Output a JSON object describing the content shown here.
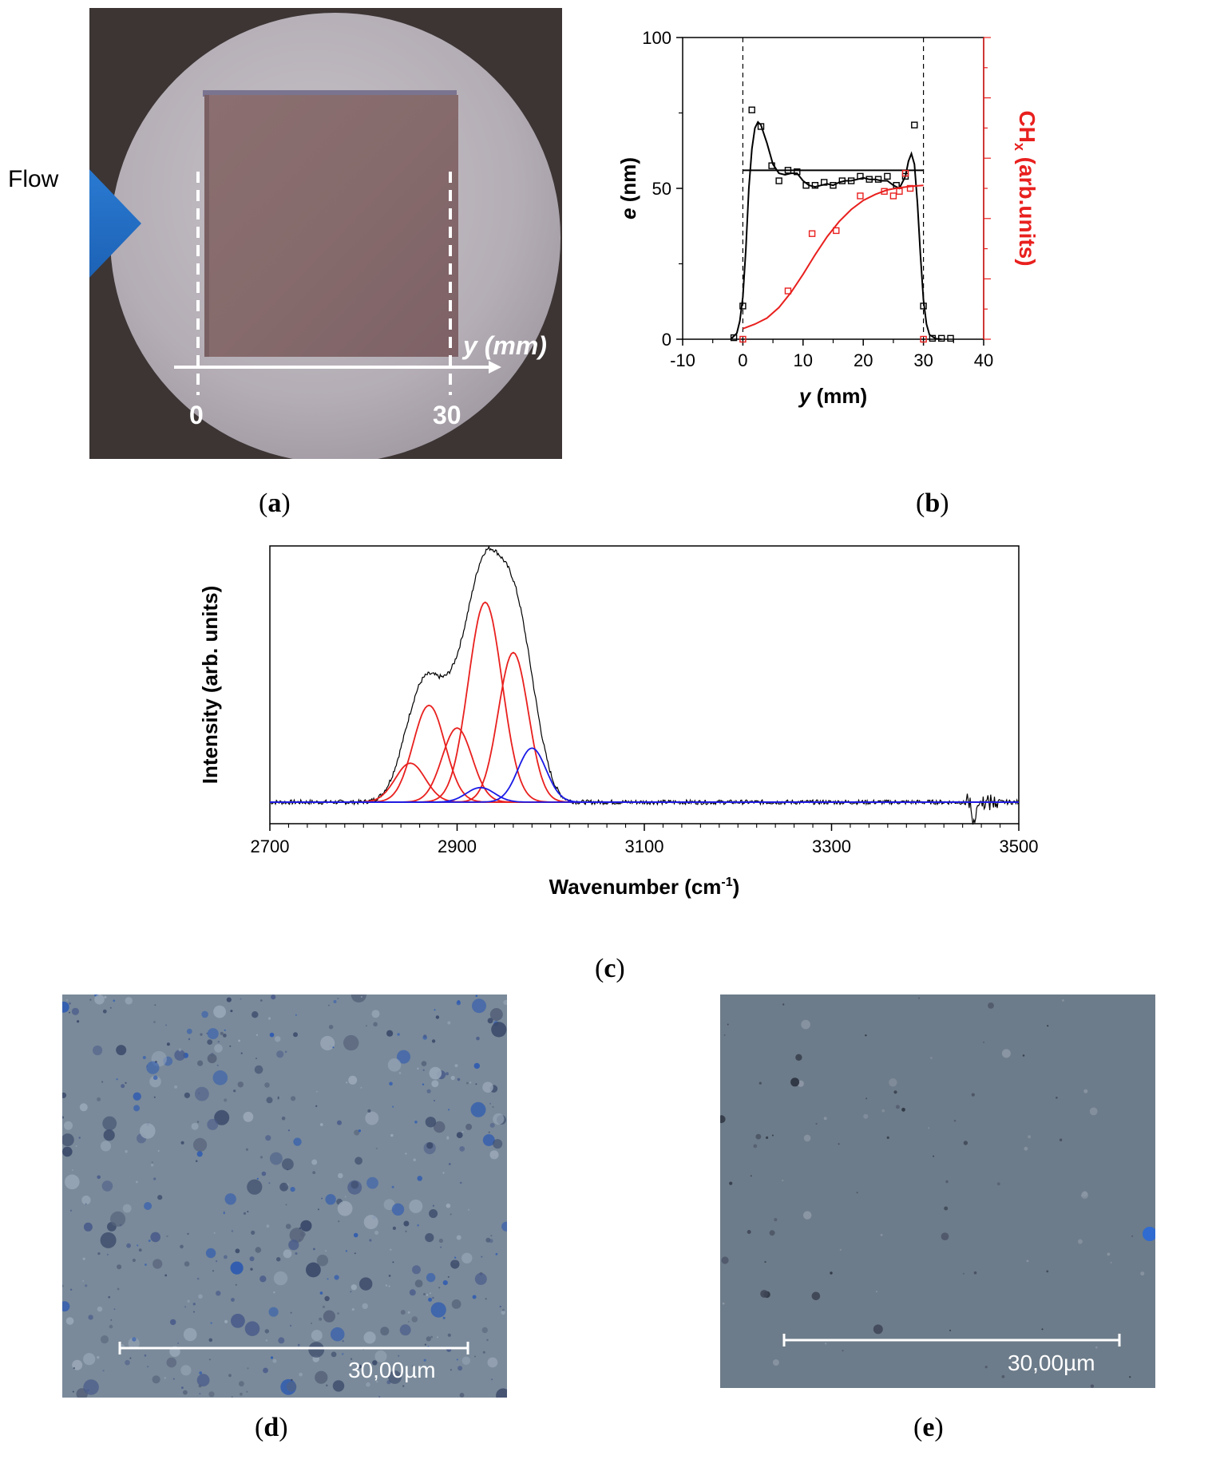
{
  "panels": {
    "a": {
      "caption_open": "(",
      "caption_letter": "a",
      "caption_close": ")",
      "flow_label": "Flow",
      "axis_label": "y (mm)",
      "tick_start": "0",
      "tick_end": "30"
    },
    "b": {
      "caption_open": "(",
      "caption_letter": "b",
      "caption_close": ")",
      "colors": {
        "thickness": "#000000",
        "chx": "#e8201e"
      }
    },
    "c": {
      "caption_open": "(",
      "caption_letter": "c",
      "caption_close": ")",
      "colors": {
        "measured": "#000000",
        "fit_red": "#e8201e",
        "fit_blue": "#1a1ae6"
      }
    },
    "d": {
      "caption_open": "(",
      "caption_letter": "d",
      "caption_close": ")",
      "scale_label": "30,00µm"
    },
    "e": {
      "caption_open": "(",
      "caption_letter": "e",
      "caption_close": ")",
      "scale_label": "30,00µm"
    }
  },
  "chart_data": [
    {
      "panel": "b",
      "type": "scatter",
      "xlabel": "y (mm)",
      "ylabel": "e (nm)",
      "ylabel_right": "CHx (arb.units)",
      "xlim": [
        -10,
        40
      ],
      "ylim": [
        0,
        100
      ],
      "x_ticks": [
        "-10",
        "0",
        "10",
        "20",
        "30",
        "40"
      ],
      "y_ticks": [
        "0",
        "50",
        "100"
      ],
      "grid": false,
      "vertical_dashed_lines": [
        0,
        30
      ],
      "reference_line": {
        "y": 56,
        "x": [
          0,
          30
        ]
      },
      "series": [
        {
          "marker": "square-open",
          "color": "#000000",
          "points": [
            [
              -1.5,
              0.5
            ],
            [
              0,
              11
            ],
            [
              1.5,
              76
            ],
            [
              3,
              70.5
            ],
            [
              4.8,
              57.5
            ],
            [
              6,
              52.5
            ],
            [
              7.5,
              56
            ],
            [
              9,
              55.5
            ],
            [
              10.5,
              51
            ],
            [
              12,
              51
            ],
            [
              13.5,
              52
            ],
            [
              15,
              51
            ],
            [
              16.5,
              52.5
            ],
            [
              18,
              52.5
            ],
            [
              19.5,
              54
            ],
            [
              21,
              53
            ],
            [
              22.5,
              53
            ],
            [
              24,
              54
            ],
            [
              25.5,
              51
            ],
            [
              27,
              54
            ],
            [
              28.5,
              71
            ],
            [
              30,
              11
            ],
            [
              31.5,
              0.3
            ],
            [
              33,
              0.3
            ],
            [
              34.5,
              0.3
            ]
          ],
          "fit": [
            [
              -2,
              0
            ],
            [
              -1,
              2
            ],
            [
              -0.5,
              6
            ],
            [
              0,
              14
            ],
            [
              0.5,
              30
            ],
            [
              1,
              50
            ],
            [
              1.5,
              63
            ],
            [
              2,
              70
            ],
            [
              2.5,
              72
            ],
            [
              3,
              71
            ],
            [
              4,
              65
            ],
            [
              5,
              58
            ],
            [
              6,
              55
            ],
            [
              7,
              54.5
            ],
            [
              8,
              55
            ],
            [
              9,
              55
            ],
            [
              10,
              52.5
            ],
            [
              11,
              51
            ],
            [
              12,
              50.5
            ],
            [
              13,
              51
            ],
            [
              14,
              51.5
            ],
            [
              15,
              51
            ],
            [
              16,
              52
            ],
            [
              17,
              52.5
            ],
            [
              18,
              52.5
            ],
            [
              19,
              53
            ],
            [
              20,
              53.5
            ],
            [
              21,
              53
            ],
            [
              22,
              53
            ],
            [
              23,
              52.5
            ],
            [
              24,
              52.5
            ],
            [
              25,
              51
            ],
            [
              26,
              50
            ],
            [
              27,
              54
            ],
            [
              27.5,
              59
            ],
            [
              28,
              61.5
            ],
            [
              28.5,
              58
            ],
            [
              29,
              45
            ],
            [
              29.5,
              28
            ],
            [
              30,
              13
            ],
            [
              30.5,
              5
            ],
            [
              31,
              1.5
            ],
            [
              32,
              0.2
            ],
            [
              33,
              0
            ]
          ]
        },
        {
          "marker": "square-open",
          "color": "#e8201e",
          "points": [
            [
              0,
              0
            ],
            [
              7.5,
              16
            ],
            [
              11.5,
              35
            ],
            [
              15.5,
              36
            ],
            [
              19.5,
              47.5
            ],
            [
              23.5,
              49
            ],
            [
              25,
              47.5
            ],
            [
              26,
              49
            ],
            [
              27,
              55
            ],
            [
              27.8,
              50
            ],
            [
              30,
              0
            ]
          ],
          "fit": [
            [
              0,
              3.5
            ],
            [
              2,
              5
            ],
            [
              4,
              7
            ],
            [
              6,
              10.5
            ],
            [
              8,
              15.5
            ],
            [
              10,
              21.5
            ],
            [
              12,
              28
            ],
            [
              14,
              34
            ],
            [
              16,
              39
            ],
            [
              18,
              43
            ],
            [
              20,
              46
            ],
            [
              22,
              48
            ],
            [
              24,
              49.5
            ],
            [
              26,
              50.2
            ],
            [
              28,
              50.7
            ],
            [
              30,
              51
            ]
          ]
        }
      ]
    },
    {
      "panel": "c",
      "type": "line",
      "xlabel": "Wavenumber (cm-1)",
      "ylabel": "Intensity (arb. units)",
      "xlim": [
        2700,
        3500
      ],
      "x_ticks": [
        "2700",
        "2900",
        "3100",
        "3300",
        "3500"
      ],
      "grid": false,
      "measured_peaks": [
        {
          "center": 2850,
          "height": 0.165,
          "width": 16
        },
        {
          "center": 2870,
          "height": 0.38,
          "width": 17
        },
        {
          "center": 2900,
          "height": 0.295,
          "width": 16
        },
        {
          "center": 2930,
          "height": 0.79,
          "width": 18
        },
        {
          "center": 2960,
          "height": 0.595,
          "width": 16
        },
        {
          "center": 2980,
          "height": 0.215,
          "width": 15
        },
        {
          "center": 2925,
          "height": 0.055,
          "width": 15
        }
      ],
      "fit_components": [
        {
          "color": "red",
          "center": 2850,
          "height": 0.155,
          "width": 16
        },
        {
          "color": "red",
          "center": 2870,
          "height": 0.385,
          "width": 17
        },
        {
          "color": "red",
          "center": 2900,
          "height": 0.295,
          "width": 16
        },
        {
          "color": "red",
          "center": 2930,
          "height": 0.795,
          "width": 18
        },
        {
          "color": "red",
          "center": 2960,
          "height": 0.595,
          "width": 16
        },
        {
          "color": "blue",
          "center": 2925,
          "height": 0.058,
          "width": 15
        },
        {
          "color": "blue",
          "center": 2980,
          "height": 0.215,
          "width": 15
        }
      ]
    }
  ]
}
